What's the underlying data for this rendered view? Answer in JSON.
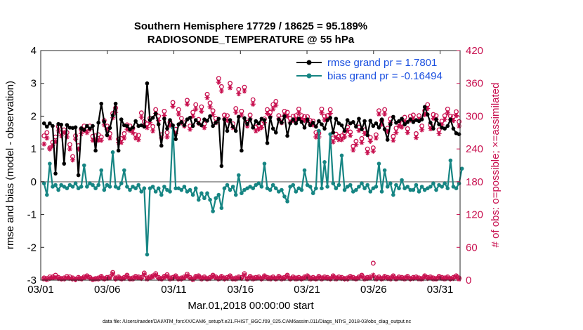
{
  "chart_data": {
    "type": "line",
    "title": "Southern Hemisphere 17729 / 18625 = 95.189%",
    "subtitle": "RADIOSONDE_TEMPERATURE @ 55 hPa",
    "xlabel": "Mar.01,2018 00:00:00 start",
    "ylabel": "rmse and bias (model - observation)",
    "y2label": "# of obs: o=possible; ×=assimilated",
    "footnote": "data file: /Users/raeder/DAI/ATM_forcXX/CAM6_setup/f.e21.FHIST_BGC.f09_025.CAM6assim.011/Diags_NTrS_2018-03/obs_diag_output.nc",
    "xlim": [
      0,
      31.5
    ],
    "ylim": [
      -3,
      4
    ],
    "y2lim": [
      0,
      420
    ],
    "x_ticks": [
      0,
      5,
      10,
      15,
      20,
      25,
      30
    ],
    "x_tick_labels": [
      "03/01",
      "03/06",
      "03/11",
      "03/16",
      "03/21",
      "03/26",
      "03/31"
    ],
    "y_ticks": [
      -3,
      -2,
      -1,
      0,
      1,
      2,
      3,
      4
    ],
    "y_tick_labels": [
      "-3",
      "-2",
      "-1",
      "0",
      "1",
      "2",
      "3",
      "4"
    ],
    "y2_ticks": [
      0,
      60,
      120,
      180,
      240,
      300,
      360,
      420
    ],
    "y2_tick_labels": [
      "0",
      "60",
      "120",
      "180",
      "240",
      "300",
      "360",
      "420"
    ],
    "grid": false,
    "legend_position": "top-right",
    "series": [
      {
        "name": "rmse",
        "legend": "rmse grand pr = 1.7801",
        "color": "#000000",
        "axis": "left",
        "marker": "filled-circle",
        "values": [
          1.78,
          1.68,
          1.78,
          1.7,
          0.25,
          1.76,
          1.74,
          0.55,
          1.73,
          1.65,
          1.64,
          1.66,
          0.2,
          1.63,
          1.58,
          1.7,
          1.62,
          1.7,
          0.95,
          1.8,
          2.38,
          1.83,
          1.42,
          1.64,
          2.02,
          2.38,
          0.95,
          1.9,
          1.72,
          1.7,
          1.6,
          1.65,
          1.85,
          1.7,
          1.72,
          1.68,
          3.0,
          1.88,
          1.95,
          2.08,
          1.75,
          1.1,
          1.92,
          1.62,
          1.88,
          1.72,
          1.3,
          1.75,
          1.82,
          1.72,
          1.9,
          1.95,
          1.7,
          1.88,
          1.78,
          1.72,
          1.9,
          1.86,
          2.0,
          1.7,
          1.8,
          1.92,
          0.48,
          1.9,
          1.55,
          1.88,
          1.68,
          1.55,
          1.98,
          0.95,
          1.94,
          1.76,
          1.9,
          1.65,
          1.85,
          1.78,
          1.92,
          1.88,
          1.18,
          1.96,
          1.62,
          1.5,
          1.9,
          1.8,
          2.0,
          1.4,
          1.78,
          1.9,
          1.78,
          1.92,
          1.82,
          1.65,
          1.9,
          1.72,
          1.8,
          1.68,
          1.85,
          1.75,
          1.62,
          1.88,
          1.95,
          1.5,
          1.92,
          1.78,
          1.72,
          1.55,
          1.88,
          1.78,
          1.82,
          1.68,
          1.92,
          1.6,
          1.85,
          1.42,
          1.86,
          1.7,
          1.78,
          1.65,
          1.9,
          1.6,
          1.28,
          1.75,
          1.98,
          1.8,
          1.85,
          1.92,
          1.75,
          1.82,
          1.9,
          1.82,
          1.88,
          1.85,
          1.9,
          2.28,
          2.05,
          1.8,
          1.62,
          1.9,
          1.75,
          1.65,
          1.62,
          1.7,
          1.9,
          1.62,
          1.48,
          1.45
        ]
      },
      {
        "name": "bias",
        "legend": "bias grand pr = -0.16494",
        "color": "#168583",
        "axis": "left",
        "marker": "filled-circle",
        "values": [
          -0.05,
          -0.4,
          0.55,
          -0.15,
          -0.1,
          -0.25,
          -0.1,
          -0.15,
          -0.2,
          -0.1,
          -0.15,
          -0.05,
          -0.2,
          -0.15,
          0.5,
          -0.15,
          -0.05,
          -0.1,
          -0.2,
          -0.1,
          0.35,
          -0.25,
          -0.1,
          -0.15,
          0.9,
          -0.15,
          -0.2,
          -0.05,
          0.35,
          -0.15,
          -0.25,
          -0.15,
          -0.2,
          -0.1,
          -0.3,
          -0.2,
          -2.22,
          -0.2,
          -0.15,
          -0.3,
          -0.2,
          -0.4,
          -0.15,
          -0.25,
          -0.3,
          1.65,
          -0.2,
          -0.2,
          -0.25,
          -0.15,
          -0.3,
          -0.25,
          -0.4,
          -0.2,
          -0.55,
          -0.35,
          -0.5,
          -0.35,
          -0.55,
          -0.9,
          -0.5,
          -0.4,
          -0.8,
          -0.2,
          -0.1,
          -0.25,
          -0.15,
          -0.4,
          0.2,
          -0.35,
          -0.25,
          -0.2,
          -0.15,
          -0.2,
          -0.1,
          -0.05,
          -0.15,
          0.55,
          -0.2,
          -0.25,
          -0.1,
          -0.2,
          -0.3,
          -0.25,
          -0.45,
          -0.6,
          -0.15,
          -0.1,
          -0.3,
          -0.2,
          -0.25,
          0.35,
          -0.1,
          -0.15,
          -0.35,
          -0.2,
          1.55,
          -0.2,
          0.6,
          -0.15,
          1.45,
          -0.05,
          -0.2,
          -0.1,
          0.8,
          -0.25,
          -0.15,
          -0.1,
          -0.3,
          -0.25,
          -0.15,
          -0.05,
          -0.2,
          -0.1,
          -0.3,
          -0.2,
          -0.15,
          0.55,
          -0.3,
          0.35,
          -0.15,
          -0.05,
          -0.4,
          -0.1,
          -0.2,
          0.05,
          -0.2,
          -0.15,
          -0.25,
          -0.25,
          -0.1,
          -0.3,
          -0.15,
          -0.25,
          -0.2,
          -0.15,
          -0.05,
          -0.25,
          -0.1,
          -0.15,
          -0.05,
          -0.2,
          0.65,
          -0.15,
          -0.2,
          -0.05,
          0.4
        ]
      },
      {
        "name": "possible",
        "legend": "o=possible",
        "color": "#c8104f",
        "axis": "right",
        "marker": "open-circle",
        "values_top": [
          264,
          270,
          242,
          252,
          262,
          281,
          270,
          275,
          270,
          248,
          226,
          264,
          246,
          276,
          282,
          278,
          282,
          263,
          264,
          266,
          262,
          292,
          282,
          268,
          305,
          315,
          258,
          259,
          268,
          284,
          282,
          278,
          266,
          265,
          306,
          290,
          286,
          296,
          281,
          312,
          300,
          266,
          309,
          270,
          289,
          325,
          276,
          312,
          296,
          288,
          329,
          282,
          307,
          321,
          294,
          317,
          286,
          340,
          324,
          310,
          296,
          369,
          354,
          302,
          301,
          360,
          286,
          314,
          349,
          309,
          353,
          289,
          302,
          330,
          280,
          283,
          286,
          295,
          312,
          307,
          321,
          327,
          301,
          296,
          309,
          307,
          296,
          300,
          301,
          313,
          301,
          299,
          299,
          292,
          291,
          270,
          269,
          313,
          300,
          301,
          312,
          260,
          267,
          263,
          264,
          270,
          280,
          271,
          245,
          254,
          280,
          259,
          275,
          240,
          261,
          242,
          266,
          310,
          292,
          312,
          278,
          295,
          263,
          278,
          288,
          287,
          298,
          277,
          300,
          302,
          268,
          301,
          282,
          310,
          321,
          284,
          303,
          301,
          275,
          291,
          301,
          313,
          300,
          299,
          308,
          290
        ],
        "values_bottom": [
          4,
          3,
          6,
          6,
          9,
          5,
          3,
          4,
          7,
          6,
          4,
          2,
          5,
          3,
          6,
          8,
          5,
          2,
          3,
          4,
          7,
          3,
          5,
          6,
          14,
          4,
          6,
          3,
          5,
          9,
          3,
          4,
          7,
          6,
          5,
          13,
          4,
          6,
          8,
          12,
          5,
          3,
          7,
          10,
          4,
          5,
          8,
          3,
          4,
          6,
          11,
          5,
          2,
          7,
          8,
          4,
          6,
          3,
          5,
          9,
          6,
          3,
          7,
          4,
          5,
          8,
          3,
          4,
          6,
          5,
          12,
          3,
          7,
          4,
          5,
          6,
          3,
          8,
          5,
          4,
          6,
          3,
          7,
          4,
          5,
          9,
          3,
          6,
          4,
          5,
          3,
          6,
          8,
          4,
          5,
          3,
          7,
          4,
          6,
          5,
          3,
          8,
          4,
          6,
          5,
          3,
          4,
          7,
          5,
          3,
          6,
          9,
          4,
          5,
          6,
          31,
          4,
          6,
          3,
          7,
          5,
          4,
          8,
          3,
          6,
          5,
          4,
          7,
          3,
          5,
          6,
          4,
          3,
          8,
          5,
          6,
          4,
          3,
          7,
          5,
          4,
          6,
          3,
          5,
          8,
          4
        ]
      },
      {
        "name": "assimilated",
        "legend": "×=assimilated",
        "color": "#c8104f",
        "axis": "right",
        "marker": "asterisk",
        "values_top": [
          249,
          260,
          240,
          246,
          253,
          273,
          264,
          270,
          262,
          240,
          220,
          258,
          240,
          268,
          274,
          270,
          276,
          256,
          256,
          256,
          256,
          284,
          276,
          260,
          297,
          307,
          252,
          252,
          260,
          276,
          274,
          270,
          260,
          257,
          298,
          282,
          279,
          288,
          273,
          305,
          292,
          260,
          301,
          262,
          283,
          318,
          268,
          304,
          288,
          282,
          322,
          276,
          300,
          313,
          287,
          309,
          279,
          334,
          317,
          303,
          288,
          362,
          346,
          295,
          292,
          352,
          279,
          307,
          341,
          302,
          346,
          282,
          295,
          322,
          273,
          276,
          279,
          288,
          305,
          300,
          313,
          320,
          295,
          288,
          302,
          300,
          289,
          292,
          294,
          306,
          294,
          292,
          292,
          285,
          284,
          262,
          262,
          306,
          293,
          294,
          305,
          253,
          261,
          257,
          257,
          262,
          274,
          265,
          238,
          248,
          274,
          252,
          268,
          233,
          254,
          236,
          260,
          304,
          285,
          304,
          272,
          288,
          256,
          270,
          282,
          280,
          290,
          270,
          293,
          295,
          261,
          294,
          275,
          303,
          314,
          277,
          296,
          294,
          268,
          284,
          294,
          306,
          293,
          292,
          301,
          282
        ],
        "values_bottom": [
          2,
          1,
          3,
          4,
          5,
          3,
          2,
          2,
          4,
          3,
          2,
          1,
          3,
          2,
          4,
          6,
          3,
          1,
          2,
          2,
          5,
          2,
          3,
          4,
          11,
          2,
          4,
          2,
          3,
          7,
          2,
          2,
          5,
          4,
          3,
          10,
          2,
          4,
          6,
          9,
          3,
          2,
          5,
          7,
          2,
          3,
          6,
          2,
          2,
          4,
          8,
          3,
          1,
          5,
          6,
          2,
          4,
          2,
          3,
          7,
          4,
          2,
          5,
          2,
          3,
          6,
          2,
          2,
          4,
          3,
          9,
          2,
          5,
          2,
          3,
          4,
          2,
          6,
          3,
          2,
          4,
          2,
          5,
          2,
          3,
          7,
          2,
          4,
          2,
          3,
          2,
          4,
          6,
          2,
          3,
          2,
          5,
          2,
          4,
          3,
          2,
          6,
          2,
          4,
          3,
          2,
          2,
          5,
          3,
          2,
          4,
          7,
          2,
          3,
          4,
          9,
          2,
          4,
          2,
          5,
          3,
          2,
          6,
          2,
          4,
          3,
          2,
          5,
          2,
          3,
          4,
          2,
          2,
          6,
          3,
          4,
          2,
          2,
          5,
          3,
          2,
          4,
          2,
          3,
          6,
          2
        ]
      }
    ]
  }
}
